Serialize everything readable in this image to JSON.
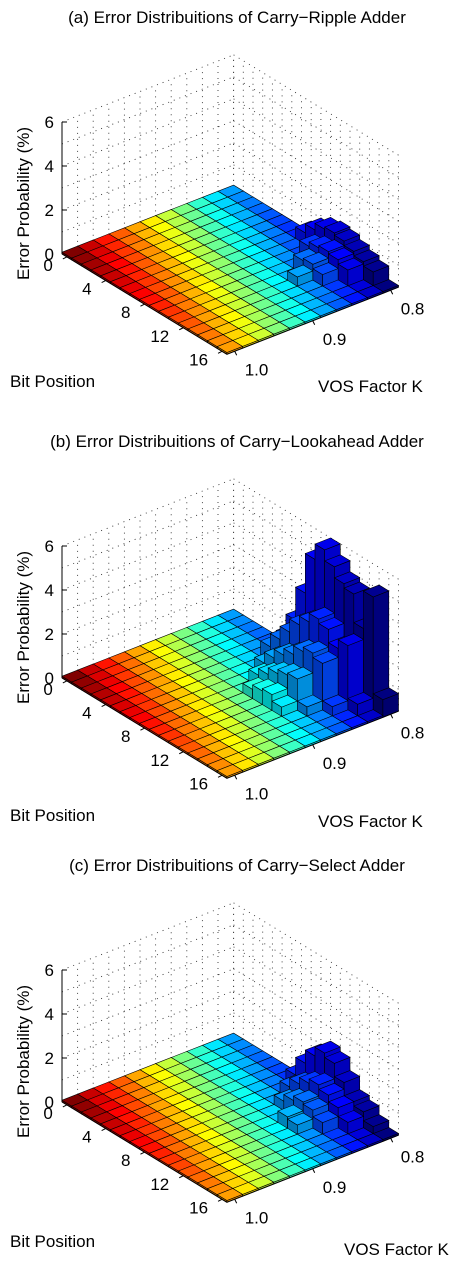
{
  "chart_data": [
    {
      "type": "bar3d",
      "title": "(a) Error Distribuitions of Carry−Ripple Adder",
      "xlabel": "Bit Position",
      "ylabel": "VOS Factor K",
      "zlabel": "Error Probability (%)",
      "bit_ticks": [
        "0",
        "4",
        "8",
        "12",
        "16"
      ],
      "k_ticks": [
        "0.8",
        "0.9",
        "1.0"
      ],
      "z_ticks": [
        "0",
        "2",
        "4",
        "6"
      ],
      "zlim": [
        0,
        6
      ],
      "bit_positions": [
        0,
        1,
        2,
        3,
        4,
        5,
        6,
        7,
        8,
        9,
        10,
        11,
        12,
        13,
        14,
        15,
        16
      ],
      "k_values": [
        0.8,
        0.82,
        0.84,
        0.86,
        0.88,
        0.9,
        0.92,
        0.94,
        0.96,
        0.98,
        1.0
      ],
      "errors": [
        {
          "bit": 15,
          "k": 0.8,
          "value": 0.7
        },
        {
          "bit": 14,
          "k": 0.8,
          "value": 0.9
        },
        {
          "bit": 13,
          "k": 0.8,
          "value": 1.1
        },
        {
          "bit": 12,
          "k": 0.8,
          "value": 1.3
        },
        {
          "bit": 11,
          "k": 0.8,
          "value": 1.4
        },
        {
          "bit": 10,
          "k": 0.8,
          "value": 1.3
        },
        {
          "bit": 9,
          "k": 0.8,
          "value": 1.0
        },
        {
          "bit": 8,
          "k": 0.8,
          "value": 0.6
        },
        {
          "bit": 14,
          "k": 0.82,
          "value": 0.8
        },
        {
          "bit": 13,
          "k": 0.82,
          "value": 1.0
        },
        {
          "bit": 12,
          "k": 0.82,
          "value": 1.1
        },
        {
          "bit": 11,
          "k": 0.82,
          "value": 1.0
        },
        {
          "bit": 10,
          "k": 0.82,
          "value": 0.8
        },
        {
          "bit": 13,
          "k": 0.84,
          "value": 0.6
        },
        {
          "bit": 12,
          "k": 0.84,
          "value": 0.8
        },
        {
          "bit": 11,
          "k": 0.84,
          "value": 0.7
        },
        {
          "bit": 12,
          "k": 0.86,
          "value": 0.5
        }
      ]
    },
    {
      "type": "bar3d",
      "title": "(b) Error Distribuitions of Carry−Lookahead Adder",
      "xlabel": "Bit Position",
      "ylabel": "VOS Factor K",
      "zlabel": "Error Probability (%)",
      "bit_ticks": [
        "0",
        "4",
        "8",
        "12",
        "16"
      ],
      "k_ticks": [
        "0.8",
        "0.9",
        "1.0"
      ],
      "z_ticks": [
        "0",
        "2",
        "4",
        "6"
      ],
      "zlim": [
        0,
        6
      ],
      "bit_positions": [
        0,
        1,
        2,
        3,
        4,
        5,
        6,
        7,
        8,
        9,
        10,
        11,
        12,
        13,
        14,
        15,
        16
      ],
      "k_values": [
        0.8,
        0.82,
        0.84,
        0.86,
        0.88,
        0.9,
        0.92,
        0.94,
        0.96,
        0.98,
        1.0
      ],
      "errors": [
        {
          "bit": 16,
          "k": 0.8,
          "value": 0.8
        },
        {
          "bit": 15,
          "k": 0.8,
          "value": 5.2
        },
        {
          "bit": 14,
          "k": 0.8,
          "value": 3.5
        },
        {
          "bit": 13,
          "k": 0.8,
          "value": 4.8
        },
        {
          "bit": 12,
          "k": 0.8,
          "value": 5.0
        },
        {
          "bit": 11,
          "k": 0.8,
          "value": 5.5
        },
        {
          "bit": 10,
          "k": 0.8,
          "value": 6.0
        },
        {
          "bit": 9,
          "k": 0.8,
          "value": 5.3
        },
        {
          "bit": 8,
          "k": 0.8,
          "value": 3.5
        },
        {
          "bit": 7,
          "k": 0.8,
          "value": 2.0
        },
        {
          "bit": 6,
          "k": 0.8,
          "value": 1.0
        },
        {
          "bit": 15,
          "k": 0.82,
          "value": 0.6
        },
        {
          "bit": 14,
          "k": 0.82,
          "value": 3.0
        },
        {
          "bit": 13,
          "k": 0.82,
          "value": 2.6
        },
        {
          "bit": 12,
          "k": 0.82,
          "value": 3.2
        },
        {
          "bit": 11,
          "k": 0.82,
          "value": 3.4
        },
        {
          "bit": 10,
          "k": 0.82,
          "value": 3.0
        },
        {
          "bit": 9,
          "k": 0.82,
          "value": 2.6
        },
        {
          "bit": 8,
          "k": 0.82,
          "value": 2.0
        },
        {
          "bit": 7,
          "k": 0.82,
          "value": 1.4
        },
        {
          "bit": 6,
          "k": 0.82,
          "value": 0.8
        },
        {
          "bit": 14,
          "k": 0.84,
          "value": 0.5
        },
        {
          "bit": 13,
          "k": 0.84,
          "value": 2.2
        },
        {
          "bit": 12,
          "k": 0.84,
          "value": 2.4
        },
        {
          "bit": 11,
          "k": 0.84,
          "value": 2.2
        },
        {
          "bit": 10,
          "k": 0.84,
          "value": 1.8
        },
        {
          "bit": 9,
          "k": 0.84,
          "value": 1.5
        },
        {
          "bit": 8,
          "k": 0.84,
          "value": 1.1
        },
        {
          "bit": 7,
          "k": 0.84,
          "value": 0.6
        },
        {
          "bit": 13,
          "k": 0.86,
          "value": 0.5
        },
        {
          "bit": 12,
          "k": 0.86,
          "value": 1.5
        },
        {
          "bit": 11,
          "k": 0.86,
          "value": 1.4
        },
        {
          "bit": 10,
          "k": 0.86,
          "value": 1.2
        },
        {
          "bit": 9,
          "k": 0.86,
          "value": 0.9
        },
        {
          "bit": 8,
          "k": 0.86,
          "value": 0.6
        },
        {
          "bit": 12,
          "k": 0.88,
          "value": 0.5
        },
        {
          "bit": 11,
          "k": 0.88,
          "value": 0.8
        },
        {
          "bit": 10,
          "k": 0.88,
          "value": 0.7
        },
        {
          "bit": 9,
          "k": 0.88,
          "value": 0.5
        }
      ]
    },
    {
      "type": "bar3d",
      "title": "(c) Error Distribuitions of Carry−Select Adder",
      "xlabel": "Bit Position",
      "ylabel": "VOS Factor K",
      "zlabel": "Error Probability (%)",
      "bit_ticks": [
        "0",
        "4",
        "8",
        "12",
        "16"
      ],
      "k_ticks": [
        "0.8",
        "0.9",
        "1.0"
      ],
      "z_ticks": [
        "0",
        "2",
        "4",
        "6"
      ],
      "zlim": [
        0,
        6
      ],
      "bit_positions": [
        0,
        1,
        2,
        3,
        4,
        5,
        6,
        7,
        8,
        9,
        10,
        11,
        12,
        13,
        14,
        15,
        16
      ],
      "k_values": [
        0.8,
        0.82,
        0.84,
        0.86,
        0.88,
        0.9,
        0.92,
        0.94,
        0.96,
        0.98,
        1.0
      ],
      "errors": [
        {
          "bit": 15,
          "k": 0.8,
          "value": 0.4
        },
        {
          "bit": 14,
          "k": 0.8,
          "value": 0.8
        },
        {
          "bit": 13,
          "k": 0.8,
          "value": 1.0
        },
        {
          "bit": 12,
          "k": 0.8,
          "value": 1.6
        },
        {
          "bit": 11,
          "k": 0.8,
          "value": 2.2
        },
        {
          "bit": 10,
          "k": 0.8,
          "value": 2.4
        },
        {
          "bit": 9,
          "k": 0.8,
          "value": 2.0
        },
        {
          "bit": 8,
          "k": 0.8,
          "value": 1.4
        },
        {
          "bit": 7,
          "k": 0.8,
          "value": 0.6
        },
        {
          "bit": 14,
          "k": 0.82,
          "value": 0.6
        },
        {
          "bit": 13,
          "k": 0.82,
          "value": 1.0
        },
        {
          "bit": 12,
          "k": 0.82,
          "value": 1.3
        },
        {
          "bit": 11,
          "k": 0.82,
          "value": 1.5
        },
        {
          "bit": 10,
          "k": 0.82,
          "value": 1.3
        },
        {
          "bit": 9,
          "k": 0.82,
          "value": 1.0
        },
        {
          "bit": 8,
          "k": 0.82,
          "value": 0.6
        },
        {
          "bit": 13,
          "k": 0.84,
          "value": 0.6
        },
        {
          "bit": 12,
          "k": 0.84,
          "value": 0.9
        },
        {
          "bit": 11,
          "k": 0.84,
          "value": 1.0
        },
        {
          "bit": 10,
          "k": 0.84,
          "value": 0.8
        },
        {
          "bit": 9,
          "k": 0.84,
          "value": 0.5
        },
        {
          "bit": 12,
          "k": 0.86,
          "value": 0.5
        },
        {
          "bit": 11,
          "k": 0.86,
          "value": 0.6
        }
      ]
    }
  ]
}
